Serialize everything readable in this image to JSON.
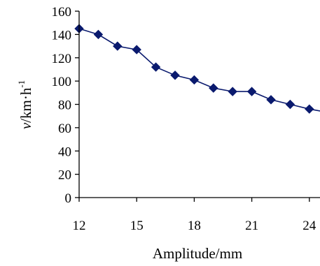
{
  "chart_data": {
    "type": "line",
    "xlabel": "Amplitude/mm",
    "ylabel": {
      "var": "v",
      "unit_pre": "/km·h",
      "sup": "-1"
    },
    "xlim": [
      12,
      25
    ],
    "ylim": [
      0,
      160
    ],
    "x_ticks": [
      12,
      15,
      18,
      21,
      24
    ],
    "y_ticks": [
      0,
      20,
      40,
      60,
      80,
      100,
      120,
      140,
      160
    ],
    "grid": false,
    "legend": "none",
    "series_color": "#0a1a6e",
    "marker": "diamond",
    "series": [
      {
        "x": [
          12,
          13,
          14,
          15,
          16,
          17,
          18,
          19,
          20,
          21,
          22,
          23,
          24,
          25
        ],
        "values": [
          145,
          140,
          130,
          127,
          112,
          105,
          101,
          94,
          91,
          91,
          84,
          80,
          76,
          73
        ]
      }
    ]
  }
}
